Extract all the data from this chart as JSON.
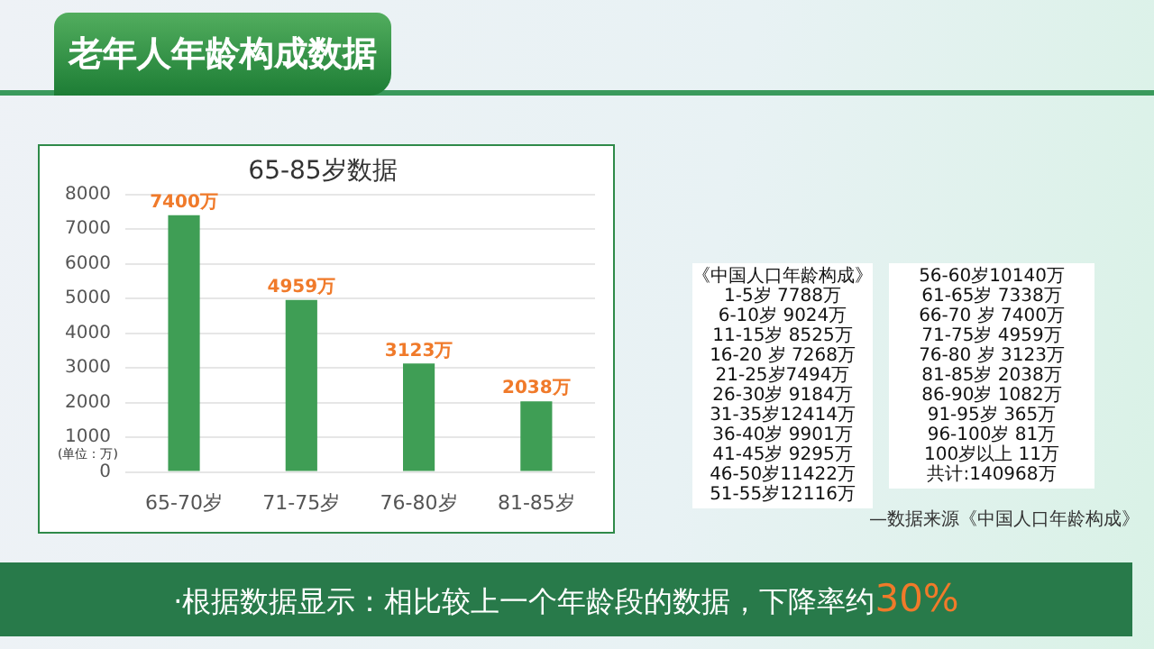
{
  "chart_data": {
    "type": "bar",
    "title": "老年人年龄构成数据",
    "subtitle": "65-85岁数据",
    "ylabel": "(单位：万)",
    "categories": [
      "65-70岁",
      "71-75岁",
      "76-80岁",
      "81-85岁"
    ],
    "values": [
      7400,
      4959,
      3123,
      2038
    ],
    "color": "#3f9e55",
    "value_labels": [
      "7400万",
      "4959万",
      "3123万",
      "2038万"
    ],
    "ylim": [
      0,
      8000
    ],
    "yticks": [
      0,
      1000,
      2000,
      3000,
      4000,
      5000,
      6000,
      7000,
      8000
    ],
    "grid": "y",
    "legend": false,
    "annotations": [
      "《中国人口年龄构成》",
      "1-5岁 7788万",
      "6-10岁 9024万",
      "11-15岁 8525万",
      "16-20 岁 7268万",
      "21-25岁7494万",
      "26-30岁 9184万",
      "31-35岁12414万",
      "36-40岁 9901万",
      "41-45岁 9295万",
      "46-50岁11422万",
      "51-55岁12116万",
      "56-60岁10140万",
      "61-65岁 7338万",
      "66-70 岁 7400万",
      "71-75岁 4959万",
      "76-80 岁 3123万",
      "81-85岁 2038万",
      "86-90岁 1082万",
      "91-95岁 365万",
      "96-100岁 81万",
      "100岁以上 11万",
      "共计:140968万",
      "—数据来源《中国人口年龄构成》",
      "·根据数据显示：相比较上一个年龄段的数据，下降率约30%"
    ]
  }
}
